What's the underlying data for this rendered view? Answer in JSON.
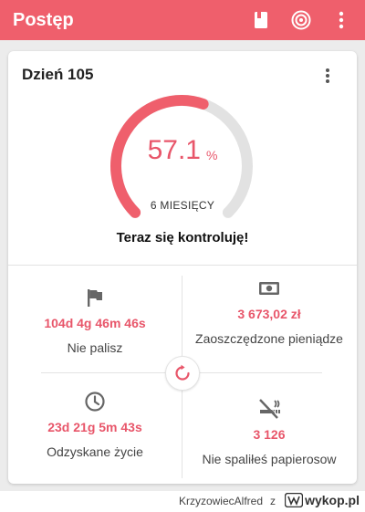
{
  "appbar": {
    "title": "Postęp",
    "accent": "#ef5f6c"
  },
  "card": {
    "title": "Dzień 105",
    "progress": {
      "percent": "57.1",
      "unit": "%",
      "fraction": 0.571
    },
    "duration_label": "6 MIESIĘCY",
    "status": "Teraz się kontroluję!"
  },
  "stats": {
    "smoke_free": {
      "icon": "flag-icon",
      "value": "104d 4g 46m 46s",
      "label": "Nie palisz"
    },
    "money_saved": {
      "icon": "money-icon",
      "value": "3 673,02 zł",
      "label": "Zaoszczędzone pieniądze"
    },
    "life_regained": {
      "icon": "clock-icon",
      "value": "23d 21g 5m 43s",
      "label": "Odzyskane życie"
    },
    "not_smoked": {
      "icon": "no-smoking-icon",
      "value": "3 126",
      "label": "Nie spaliłeś papierosow"
    }
  },
  "footer": {
    "username": "KrzyzowiecAlfred",
    "connector": "z",
    "site": "wykop.pl"
  }
}
